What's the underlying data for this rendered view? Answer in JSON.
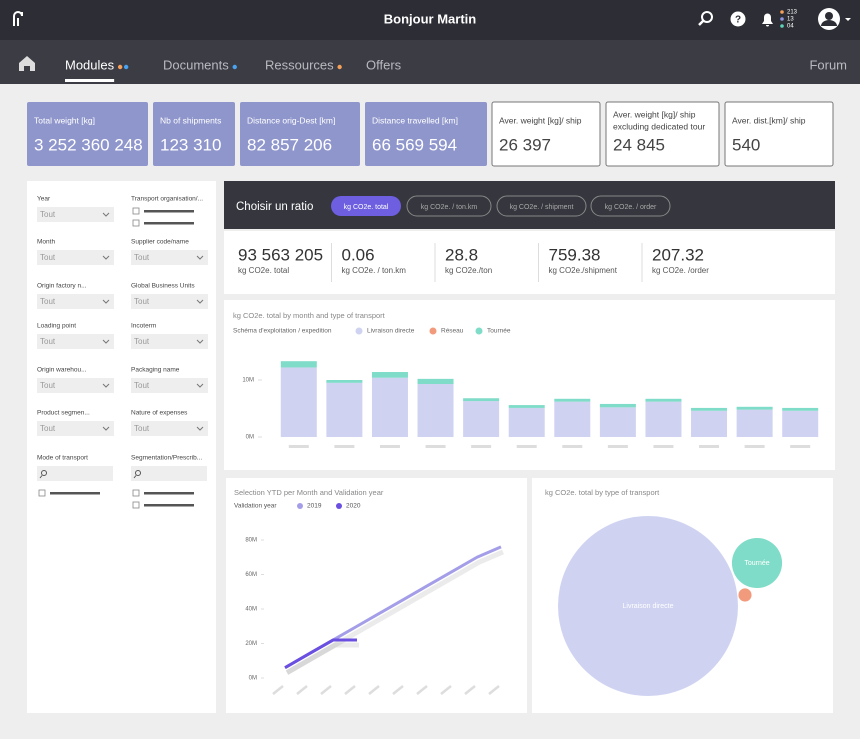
{
  "header": {
    "title": "Bonjour Martin",
    "notifications": [
      "213",
      "13",
      "04"
    ]
  },
  "nav": {
    "items": [
      "Modules",
      "Documents",
      "Ressources",
      "Offers"
    ],
    "forum": "Forum"
  },
  "kpis": [
    {
      "label": [
        "Total weight [kg]"
      ],
      "value": "3 252 360 248"
    },
    {
      "label": [
        "Nb of shipments"
      ],
      "value": "123 310"
    },
    {
      "label": [
        "Distance orig-Dest [km]"
      ],
      "value": "82 857 206"
    },
    {
      "label": [
        "Distance travelled [km]"
      ],
      "value": "66 569 594"
    },
    {
      "label": [
        "Aver. weight [kg]/ ship"
      ],
      "value": "26 397"
    },
    {
      "label": [
        "Aver. weight [kg]/ ship",
        "excluding dedicated tour"
      ],
      "value": "24 845"
    },
    {
      "label": [
        "Aver. dist.[km]/ ship"
      ],
      "value": "540"
    }
  ],
  "filters": [
    {
      "label": "Year",
      "value": "Tout"
    },
    {
      "label": "Transport organisation/..."
    },
    {
      "label": "Month",
      "value": "Tout"
    },
    {
      "label": "Supplier code/name",
      "value": "Tout"
    },
    {
      "label": "Origin factory n...",
      "value": "Tout"
    },
    {
      "label": "Global Business Units",
      "value": "Tout"
    },
    {
      "label": "Loading point",
      "value": "Tout"
    },
    {
      "label": "Incoterm",
      "value": "Tout"
    },
    {
      "label": "Origin warehou...",
      "value": "Tout"
    },
    {
      "label": "Packaging name",
      "value": "Tout"
    },
    {
      "label": "Product segmen...",
      "value": "Tout"
    },
    {
      "label": "Nature of expenses",
      "value": "Tout"
    },
    {
      "label": "Mode of transport"
    },
    {
      "label": "Segmentation/Prescrib..."
    }
  ],
  "ratio": {
    "title": "Choisir un ratio",
    "options": [
      "kg CO2e. total",
      "kg CO2e. / ton.km",
      "kg CO2e. / shipment",
      "kg CO2e. / order"
    ],
    "active": 0
  },
  "stats": [
    {
      "value": "93 563 205",
      "label": "kg CO2e. total"
    },
    {
      "value": "0.06",
      "label": "kg CO2e. / ton.km"
    },
    {
      "value": "28.8",
      "label": "kg CO2e./ton"
    },
    {
      "value": "759.38",
      "label": "kg CO2e./shipment"
    },
    {
      "value": "207.32",
      "label": "kg CO2e. /order"
    }
  ],
  "chart_data": [
    {
      "type": "bar",
      "stacked": true,
      "title": "kg CO2e. total by month and type of transport",
      "legend_title": "Schéma d'exploitation / expedition",
      "categories": [
        null,
        null,
        null,
        null,
        null,
        null,
        null,
        null,
        null,
        null,
        null,
        null
      ],
      "series": [
        {
          "name": "Livraison directe",
          "color": "#cfd3f1",
          "values": [
            12.2,
            9.5,
            10.4,
            9.3,
            6.3,
            5.1,
            6.2,
            5.2,
            6.2,
            4.6,
            4.8,
            4.6
          ]
        },
        {
          "name": "Réseau",
          "color": "#f29b7c",
          "values": [
            0,
            0,
            0,
            0,
            0,
            0,
            0,
            0,
            0,
            0,
            0,
            0
          ]
        },
        {
          "name": "Tournée",
          "color": "#7fdcc8",
          "values": [
            1.1,
            0.5,
            1.0,
            0.9,
            0.5,
            0.5,
            0.5,
            0.6,
            0.5,
            0.5,
            0.5,
            0.5
          ]
        }
      ],
      "ylim": [
        0,
        13.5
      ],
      "yticks": [
        {
          "value": 0,
          "label": "0M"
        },
        {
          "value": 10,
          "label": "10M"
        }
      ]
    },
    {
      "type": "line",
      "title": "Selection YTD per Month and Validation year",
      "legend_title": "Validation year",
      "categories": [
        null,
        null,
        null,
        null,
        null,
        null,
        null,
        null,
        null,
        null
      ],
      "series": [
        {
          "name": "2019",
          "color": "#a49ee8",
          "values": [
            6,
            14,
            22,
            30,
            38,
            46,
            54,
            62,
            70,
            76
          ]
        },
        {
          "name": "2020",
          "color": "#6a4fe0",
          "values": [
            6,
            14,
            22,
            22,
            null,
            null,
            null,
            null,
            null,
            null
          ]
        }
      ],
      "ylim": [
        0,
        85
      ],
      "yticks": [
        {
          "value": 0,
          "label": "0M"
        },
        {
          "value": 20,
          "label": "20M"
        },
        {
          "value": 40,
          "label": "40M"
        },
        {
          "value": 60,
          "label": "60M"
        },
        {
          "value": 80,
          "label": "80M"
        }
      ]
    },
    {
      "type": "bubble",
      "title": "kg CO2e. total by type of transport",
      "categories": [
        "Livraison directe",
        "Tournée",
        null
      ],
      "colors": [
        "#cfd3f1",
        "#7fdcc8",
        "#f29b7c"
      ],
      "values": [
        86400000,
        6700000,
        460000
      ]
    }
  ]
}
